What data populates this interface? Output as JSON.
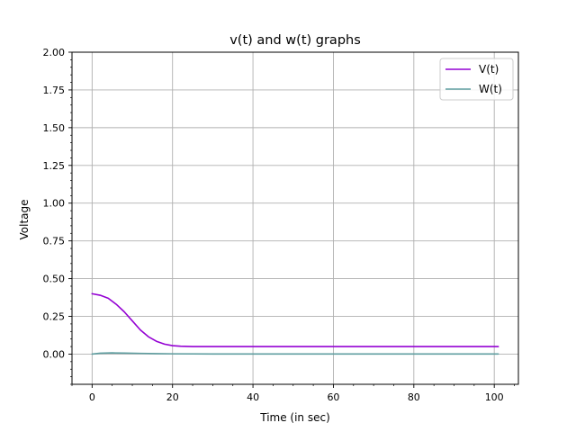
{
  "chart_data": {
    "type": "line",
    "title": "v(t) and w(t) graphs",
    "xlabel": "Time (in sec)",
    "ylabel": "Voltage",
    "xlim": [
      -5,
      106
    ],
    "ylim": [
      -0.2,
      2.0
    ],
    "xticks": [
      0,
      20,
      40,
      60,
      80,
      100
    ],
    "xtick_labels": [
      "0",
      "20",
      "40",
      "60",
      "80",
      "100"
    ],
    "yticks": [
      0.0,
      0.25,
      0.5,
      0.75,
      1.0,
      1.25,
      1.5,
      1.75,
      2.0
    ],
    "ytick_labels": [
      "0.00",
      "0.25",
      "0.50",
      "0.75",
      "1.00",
      "1.25",
      "1.50",
      "1.75",
      "2.00"
    ],
    "grid": true,
    "legend_position": "top-right",
    "series": [
      {
        "name": "V(t)",
        "color": "#9400D3",
        "x": [
          0,
          2,
          4,
          6,
          8,
          10,
          12,
          14,
          16,
          18,
          20,
          22,
          25,
          30,
          40,
          60,
          80,
          101
        ],
        "y": [
          0.4,
          0.39,
          0.37,
          0.33,
          0.28,
          0.22,
          0.16,
          0.115,
          0.085,
          0.066,
          0.056,
          0.052,
          0.05,
          0.05,
          0.05,
          0.05,
          0.05,
          0.05
        ]
      },
      {
        "name": "W(t)",
        "color": "#5F9EA0",
        "x": [
          0,
          2,
          5,
          8,
          12,
          16,
          20,
          30,
          60,
          101
        ],
        "y": [
          0.0,
          0.006,
          0.008,
          0.007,
          0.005,
          0.003,
          0.002,
          0.001,
          0.001,
          0.001
        ]
      }
    ]
  }
}
